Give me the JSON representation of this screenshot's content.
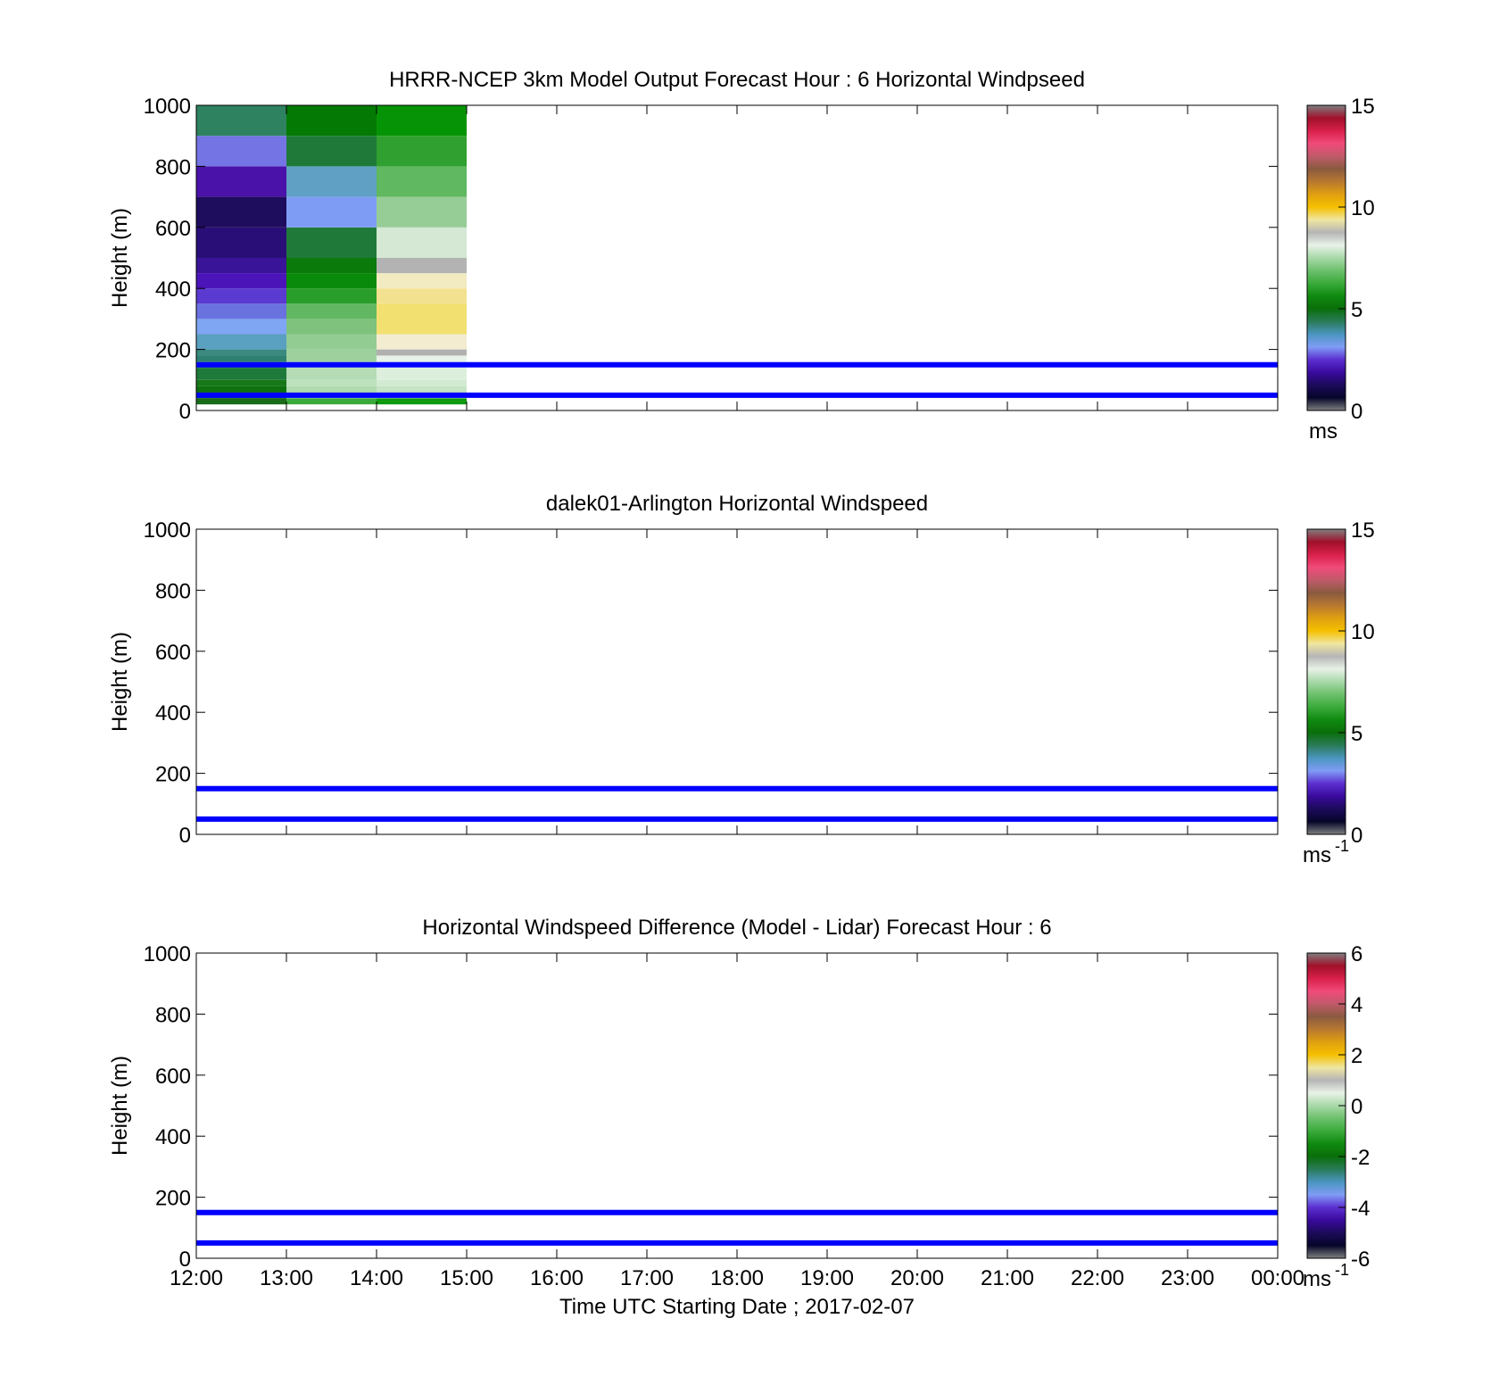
{
  "figure": {
    "xlabel": "Time UTC  Starting Date ; 2017-02-07",
    "x_ticks": [
      "12:00",
      "13:00",
      "14:00",
      "15:00",
      "16:00",
      "17:00",
      "18:00",
      "19:00",
      "20:00",
      "21:00",
      "22:00",
      "23:00",
      "00:00"
    ],
    "y_ticks": [
      "0",
      "200",
      "400",
      "600",
      "800",
      "1000"
    ],
    "ylabel": "Height (m)",
    "reference_line_color": "#0000ff"
  },
  "colormap": [
    "#808080",
    "#06062a",
    "#1c0a5a",
    "#3a0a9e",
    "#5c2fd0",
    "#7f9cf5",
    "#4a95c0",
    "#2a7b58",
    "#0a6e0a",
    "#0f8a0f",
    "#3aaa3a",
    "#6cc06c",
    "#a8d8a8",
    "#e8f2e8",
    "#b5b5b5",
    "#f0e6a0",
    "#f5c000",
    "#e0a010",
    "#b87830",
    "#8a5a40",
    "#c05a6a",
    "#f04a7a",
    "#d8204a",
    "#a0102a",
    "#808080"
  ],
  "chart_data": [
    {
      "type": "heatmap",
      "title": "HRRR-NCEP 3km Model Output   Forecast Hour : 6 Horizontal Windpseed",
      "xlabel": "",
      "ylabel": "Height (m)",
      "xlim_hours": [
        12,
        24
      ],
      "ylim": [
        0,
        1000
      ],
      "colorbar": {
        "range": [
          0,
          15
        ],
        "ticks": [
          "0",
          "5",
          "10",
          "15"
        ],
        "unit": "ms"
      },
      "columns": [
        {
          "x_start": 12,
          "x_end": 13,
          "cells": [
            {
              "y0": 20,
              "y1": 40,
              "color": "#1a6b1a"
            },
            {
              "y0": 40,
              "y1": 60,
              "color": "#106810"
            },
            {
              "y0": 60,
              "y1": 80,
              "color": "#0e700e"
            },
            {
              "y0": 80,
              "y1": 100,
              "color": "#177817"
            },
            {
              "y0": 100,
              "y1": 140,
              "color": "#1e7a3a"
            },
            {
              "y0": 140,
              "y1": 160,
              "color": "#2a7b58"
            },
            {
              "y0": 160,
              "y1": 180,
              "color": "#2e8070"
            },
            {
              "y0": 180,
              "y1": 200,
              "color": "#3a8a80"
            },
            {
              "y0": 200,
              "y1": 250,
              "color": "#5aa0c0"
            },
            {
              "y0": 250,
              "y1": 300,
              "color": "#7fa6f2"
            },
            {
              "y0": 300,
              "y1": 350,
              "color": "#6a72e0"
            },
            {
              "y0": 350,
              "y1": 400,
              "color": "#5a3ad0"
            },
            {
              "y0": 400,
              "y1": 450,
              "color": "#4b14b8"
            },
            {
              "y0": 450,
              "y1": 500,
              "color": "#3a1498"
            },
            {
              "y0": 500,
              "y1": 600,
              "color": "#2a0e78"
            },
            {
              "y0": 600,
              "y1": 700,
              "color": "#1e0c5c"
            },
            {
              "y0": 700,
              "y1": 800,
              "color": "#4a12a8"
            },
            {
              "y0": 800,
              "y1": 900,
              "color": "#7474e4"
            },
            {
              "y0": 900,
              "y1": 1000,
              "color": "#2e8260"
            }
          ]
        },
        {
          "x_start": 13,
          "x_end": 14,
          "cells": [
            {
              "y0": 20,
              "y1": 40,
              "color": "#3aaa3a"
            },
            {
              "y0": 40,
              "y1": 60,
              "color": "#a6d4a6"
            },
            {
              "y0": 60,
              "y1": 80,
              "color": "#b0dab0"
            },
            {
              "y0": 80,
              "y1": 100,
              "color": "#bde0bd"
            },
            {
              "y0": 100,
              "y1": 140,
              "color": "#b5dcb5"
            },
            {
              "y0": 140,
              "y1": 160,
              "color": "#aad6aa"
            },
            {
              "y0": 160,
              "y1": 200,
              "color": "#9ed09e"
            },
            {
              "y0": 200,
              "y1": 250,
              "color": "#93cc93"
            },
            {
              "y0": 250,
              "y1": 300,
              "color": "#7ec27e"
            },
            {
              "y0": 300,
              "y1": 350,
              "color": "#62b862"
            },
            {
              "y0": 350,
              "y1": 400,
              "color": "#2a9e2a"
            },
            {
              "y0": 400,
              "y1": 450,
              "color": "#0a8a0a"
            },
            {
              "y0": 450,
              "y1": 500,
              "color": "#0a7a0a"
            },
            {
              "y0": 500,
              "y1": 600,
              "color": "#1f7a3a"
            },
            {
              "y0": 600,
              "y1": 700,
              "color": "#7f9cf5"
            },
            {
              "y0": 700,
              "y1": 800,
              "color": "#5fa0c4"
            },
            {
              "y0": 800,
              "y1": 900,
              "color": "#1f7a3a"
            },
            {
              "y0": 900,
              "y1": 1000,
              "color": "#047a04"
            }
          ]
        },
        {
          "x_start": 14,
          "x_end": 15,
          "cells": [
            {
              "y0": 20,
              "y1": 40,
              "color": "#0f9a0f"
            },
            {
              "y0": 40,
              "y1": 60,
              "color": "#a9d6a9"
            },
            {
              "y0": 60,
              "y1": 80,
              "color": "#c6e4c6"
            },
            {
              "y0": 80,
              "y1": 100,
              "color": "#d2e9d2"
            },
            {
              "y0": 100,
              "y1": 140,
              "color": "#dcefdc"
            },
            {
              "y0": 140,
              "y1": 180,
              "color": "#e8f2e8"
            },
            {
              "y0": 180,
              "y1": 200,
              "color": "#b0b0b0"
            },
            {
              "y0": 200,
              "y1": 250,
              "color": "#f3ecd0"
            },
            {
              "y0": 250,
              "y1": 350,
              "color": "#f2e070"
            },
            {
              "y0": 350,
              "y1": 400,
              "color": "#f2e290"
            },
            {
              "y0": 400,
              "y1": 450,
              "color": "#f2eac0"
            },
            {
              "y0": 450,
              "y1": 500,
              "color": "#b3b3b3"
            },
            {
              "y0": 500,
              "y1": 600,
              "color": "#d4e8d4"
            },
            {
              "y0": 600,
              "y1": 700,
              "color": "#96cc96"
            },
            {
              "y0": 700,
              "y1": 800,
              "color": "#60b860"
            },
            {
              "y0": 800,
              "y1": 900,
              "color": "#30a030"
            },
            {
              "y0": 900,
              "y1": 1000,
              "color": "#069406"
            }
          ]
        }
      ],
      "reference_lines_y": [
        150,
        50
      ]
    },
    {
      "type": "heatmap",
      "title": "dalek01-Arlington  Horizontal Windspeed",
      "xlabel": "",
      "ylabel": "Height (m)",
      "xlim_hours": [
        12,
        24
      ],
      "ylim": [
        0,
        1000
      ],
      "colorbar": {
        "range": [
          0,
          15
        ],
        "ticks": [
          "0",
          "5",
          "10",
          "15"
        ],
        "unit": "ms",
        "unit_exp": "-1"
      },
      "columns": [],
      "reference_lines_y": [
        150,
        50
      ]
    },
    {
      "type": "heatmap",
      "title": "Horizontal Windspeed Difference (Model - Lidar) Forecast Hour : 6",
      "xlabel": "Time UTC  Starting Date ; 2017-02-07",
      "ylabel": "Height (m)",
      "xlim_hours": [
        12,
        24
      ],
      "ylim": [
        0,
        1000
      ],
      "colorbar": {
        "range": [
          -6,
          6
        ],
        "ticks": [
          "-6",
          "-4",
          "-2",
          "0",
          "2",
          "4",
          "6"
        ],
        "unit": "ms",
        "unit_exp": "-1"
      },
      "columns": [],
      "reference_lines_y": [
        150,
        50
      ]
    }
  ]
}
